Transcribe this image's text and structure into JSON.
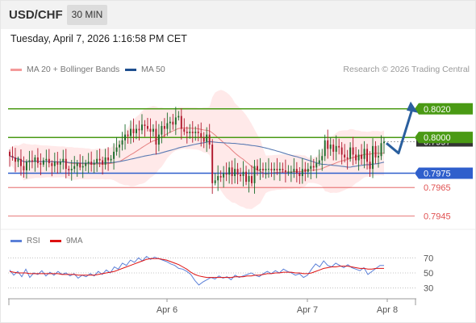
{
  "header": {
    "symbol": "USD/CHF",
    "timeframe": "30 MIN",
    "datetime": "Tuesday, April 7, 2026 1:16:58 PM CET"
  },
  "legend": {
    "ma20_label": "MA 20 + Bollinger Bands",
    "ma50_label": "MA 50",
    "copyright": "Research © 2026 Trading Central"
  },
  "rsi_legend": {
    "rsi_label": "RSI",
    "ma9_label": "9MA"
  },
  "colors": {
    "candle_up": "#1a6b2a",
    "candle_down": "#b0182d",
    "bollinger": "#ff9999",
    "ma20": "#e06666",
    "ma50": "#5b7bb3",
    "resistance": "#4a9a14",
    "pivot": "#2f5fcc",
    "support": "#e05050",
    "arrow": "#2a5f9e",
    "rsi": "#5b80d8",
    "rsi_ma": "#dd1111"
  },
  "chart_data": {
    "type": "candlestick",
    "symbol": "USD/CHF",
    "timeframe": "30 MIN",
    "ylim": [
      0.7938,
      0.8034
    ],
    "x_tick_labels": [
      "Apr 6",
      "Apr 7",
      "Apr 8"
    ],
    "current_price_label": "0.7997",
    "levels": [
      {
        "value": 0.802,
        "label": "0.8020",
        "type": "resistance"
      },
      {
        "value": 0.8,
        "label": "0.8000",
        "type": "resistance"
      },
      {
        "value": 0.7975,
        "label": "0.7975",
        "type": "pivot"
      },
      {
        "value": 0.7965,
        "label": "0.7965",
        "type": "support"
      },
      {
        "value": 0.7945,
        "label": "0.7945",
        "type": "support"
      }
    ],
    "forecast_path": [
      0.7996,
      0.7989,
      0.802
    ],
    "closes": [
      0.7987,
      0.7986,
      0.7983,
      0.7985,
      0.798,
      0.7977,
      0.7983,
      0.7984,
      0.7983,
      0.7986,
      0.7982,
      0.7981,
      0.7984,
      0.7985,
      0.7982,
      0.798,
      0.7983,
      0.7981,
      0.7983,
      0.7985,
      0.7978,
      0.7977,
      0.7978,
      0.798,
      0.7982,
      0.7979,
      0.798,
      0.7982,
      0.7983,
      0.7981,
      0.7982,
      0.7985,
      0.7984,
      0.7981,
      0.7986,
      0.7984,
      0.7985,
      0.799,
      0.7993,
      0.7995,
      0.7998,
      0.8002,
      0.8001,
      0.8006,
      0.8003,
      0.8006,
      0.8005,
      0.8009,
      0.8008,
      0.8006,
      0.8004,
      0.8006,
      0.7995,
      0.8002,
      0.8008,
      0.8006,
      0.801,
      0.8011,
      0.8009,
      0.8014,
      0.8015,
      0.8006,
      0.8004,
      0.8003,
      0.8004,
      0.8003,
      0.8004,
      0.8003,
      0.8,
      0.7997,
      0.8002,
      0.7995,
      0.7968,
      0.797,
      0.7973,
      0.7972,
      0.7975,
      0.7974,
      0.7979,
      0.7973,
      0.7978,
      0.7974,
      0.7973,
      0.7976,
      0.7969,
      0.7973,
      0.7968,
      0.798,
      0.7977,
      0.7978,
      0.7977,
      0.7978,
      0.7978,
      0.7977,
      0.7978,
      0.7977,
      0.7978,
      0.7977,
      0.7976,
      0.7976,
      0.7976,
      0.7978,
      0.7975,
      0.7973,
      0.7978,
      0.7976,
      0.7978,
      0.798,
      0.7979,
      0.7982,
      0.7984,
      0.7987,
      0.7998,
      0.7992,
      0.7995,
      0.799,
      0.7994,
      0.7993,
      0.7988,
      0.7986,
      0.7985,
      0.7993,
      0.7988,
      0.7984,
      0.7988,
      0.7985,
      0.7992,
      0.7983,
      0.7978,
      0.7994,
      0.7986,
      0.7987,
      0.7996,
      0.7997
    ]
  },
  "rsi_data": {
    "ylim": [
      20,
      80
    ],
    "levels": [
      70,
      50,
      30
    ],
    "level_labels": [
      "70",
      "50",
      "30"
    ],
    "rsi": [
      54,
      47,
      52,
      45,
      55,
      44,
      50,
      48,
      53,
      46,
      51,
      47,
      52,
      48,
      50,
      46,
      49,
      43,
      47,
      45,
      49,
      46,
      52,
      48,
      54,
      50,
      58,
      55,
      63,
      60,
      67,
      64,
      70,
      66,
      72,
      68,
      71,
      69,
      67,
      65,
      62,
      60,
      56,
      55,
      52,
      48,
      40,
      34,
      38,
      41,
      44,
      42,
      46,
      43,
      45,
      41,
      47,
      44,
      46,
      48,
      50,
      47,
      45,
      49,
      52,
      49,
      53,
      50,
      55,
      52,
      50,
      47,
      49,
      44,
      47,
      55,
      62,
      58,
      66,
      60,
      58,
      63,
      60,
      57,
      61,
      57,
      55,
      53,
      57,
      48,
      52,
      56,
      60,
      60
    ],
    "ma9": [
      52,
      51,
      50,
      50,
      50,
      49,
      49,
      49,
      49,
      49,
      49,
      49,
      49,
      48,
      48,
      48,
      48,
      47,
      47,
      47,
      47,
      47,
      48,
      49,
      50,
      51,
      52,
      54,
      56,
      58,
      60,
      62,
      64,
      66,
      68,
      69,
      69,
      69,
      68,
      67,
      65,
      63,
      61,
      58,
      55,
      51,
      48,
      46,
      45,
      44,
      44,
      44,
      44,
      44,
      44,
      44,
      45,
      45,
      45,
      46,
      46,
      47,
      47,
      48,
      49,
      49,
      50,
      50,
      51,
      51,
      51,
      50,
      50,
      49,
      49,
      50,
      52,
      54,
      56,
      57,
      58,
      58,
      59,
      59,
      59,
      58,
      57,
      56,
      56,
      55,
      55,
      56,
      56,
      56
    ]
  }
}
